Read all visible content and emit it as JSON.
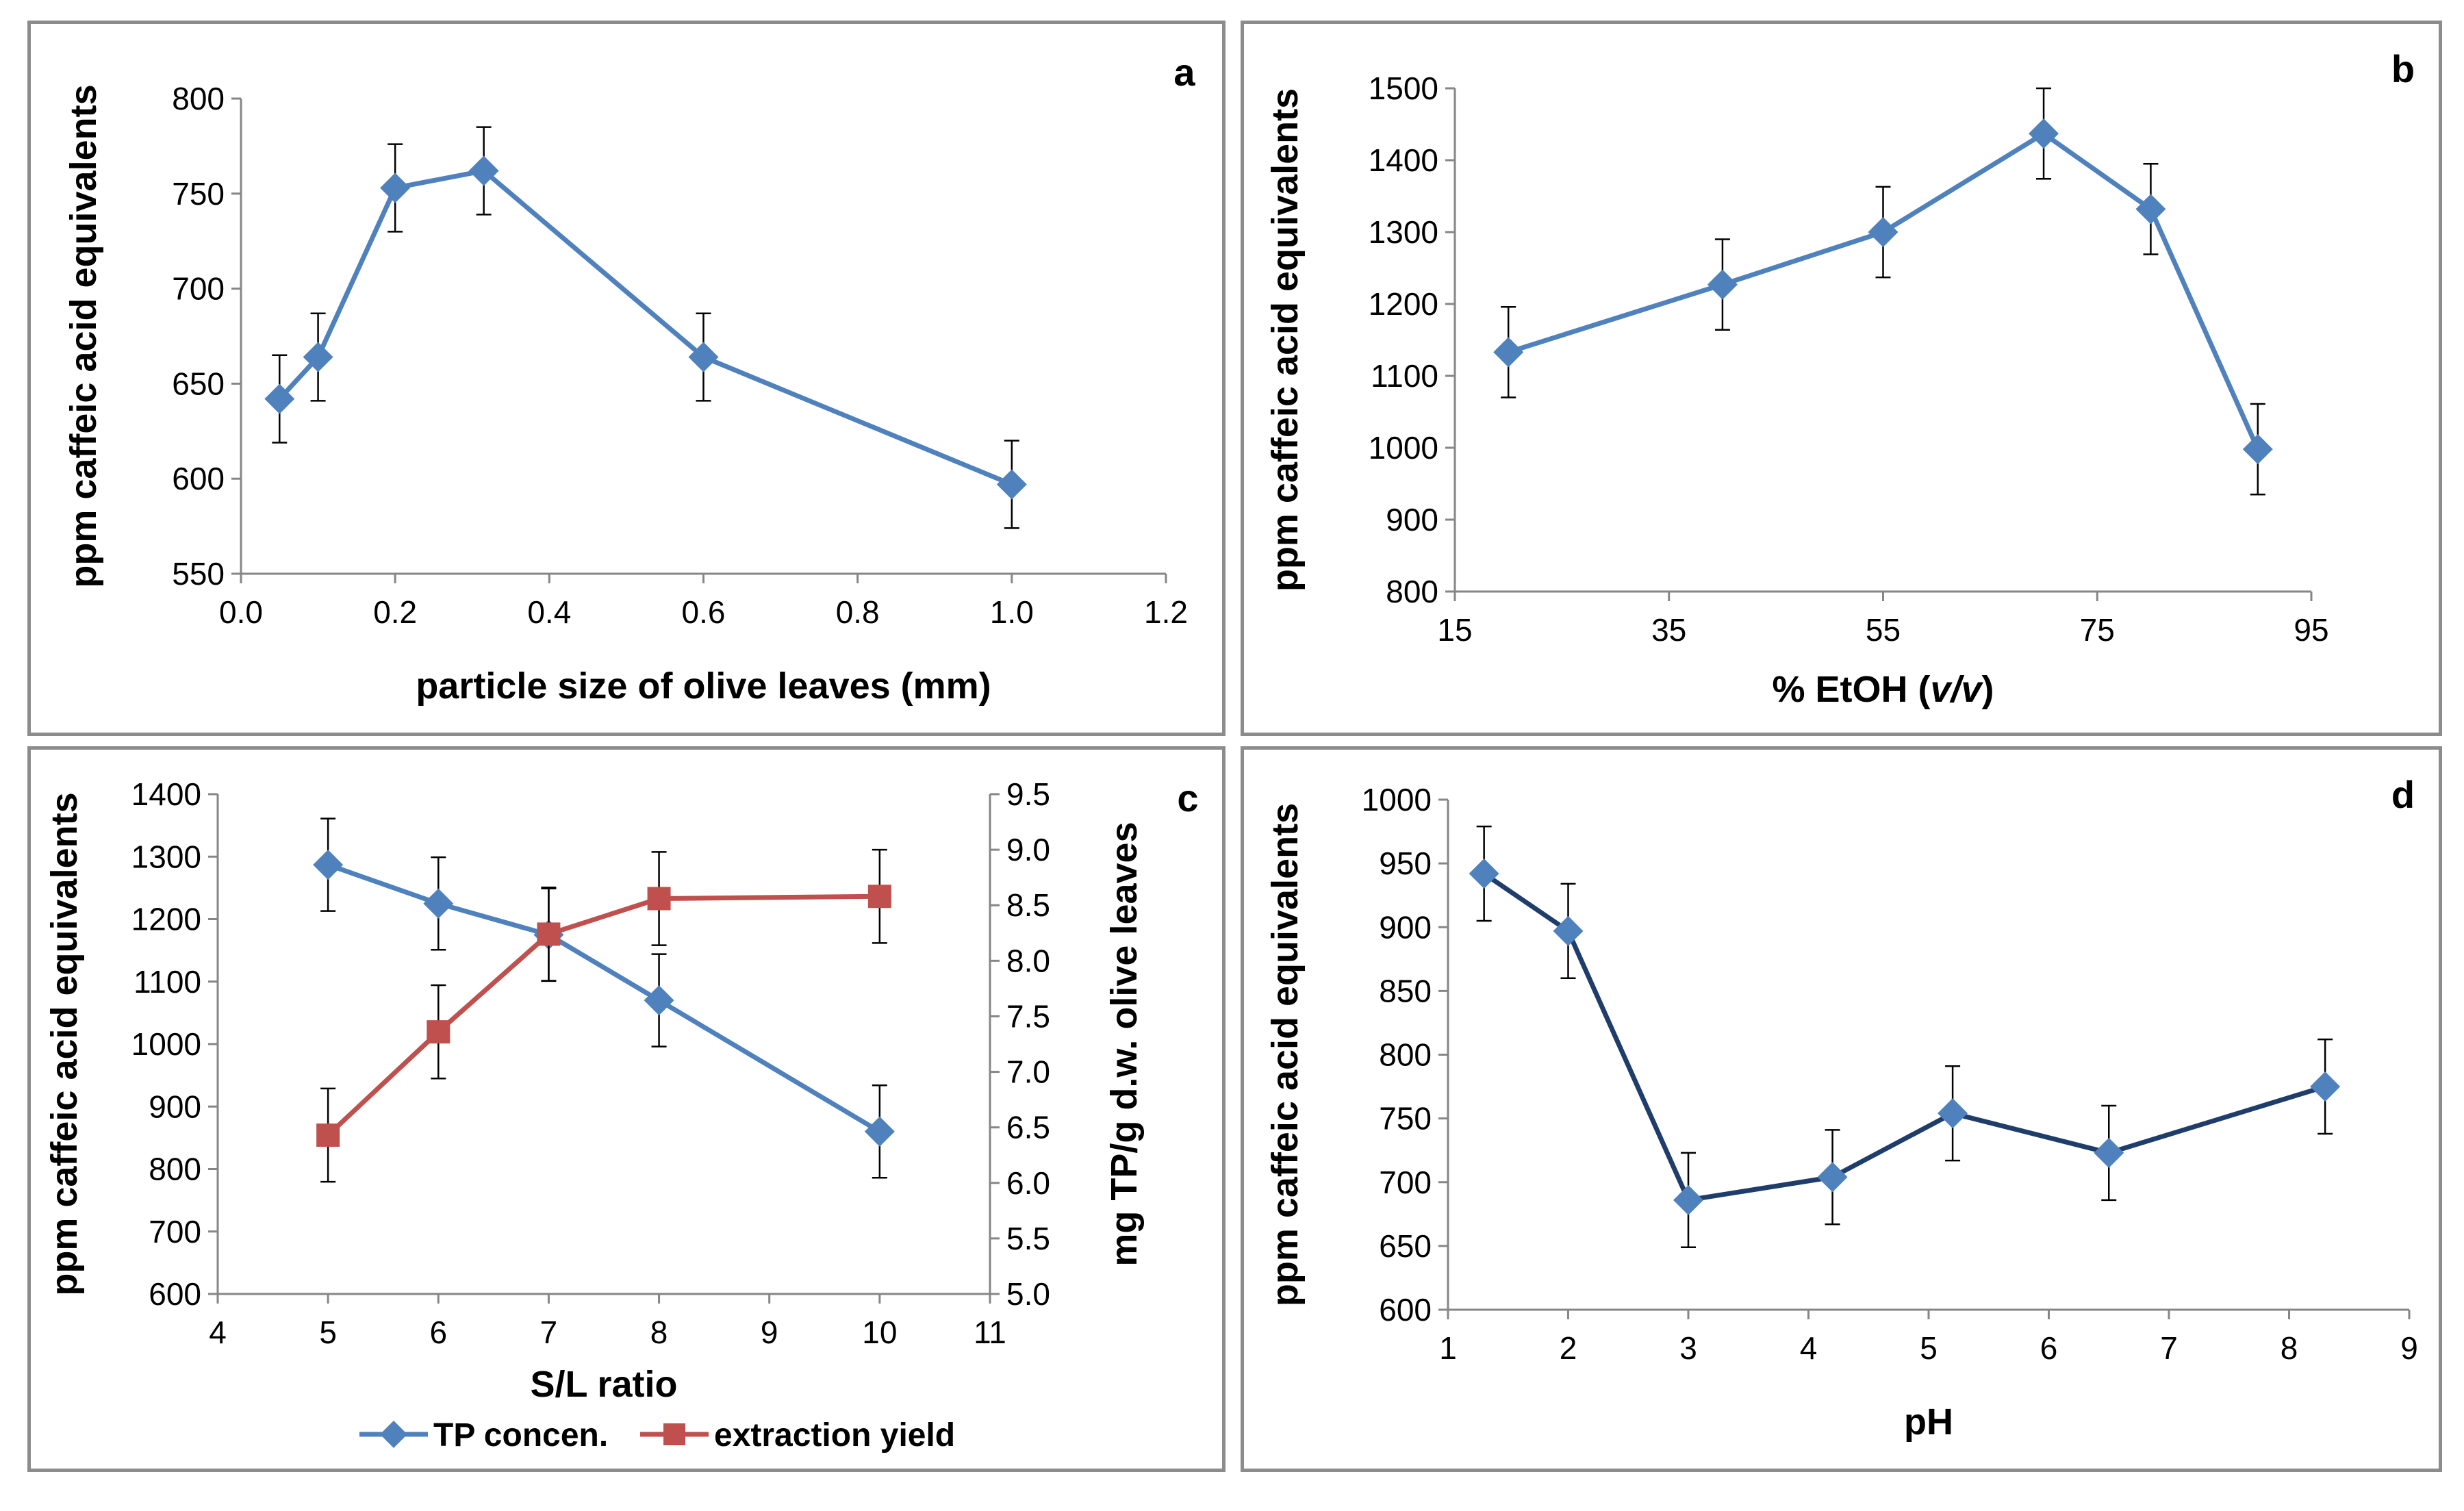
{
  "chart_data": [
    {
      "id": "a",
      "type": "line",
      "panel_label": "a",
      "xlabel": "particle size of olive leaves (mm)",
      "ylabel": "ppm caffeic acid equivalents",
      "xlim": [
        0.0,
        1.2
      ],
      "ylim": [
        550,
        800
      ],
      "xticks": [
        "0.0",
        "0.2",
        "0.4",
        "0.6",
        "0.8",
        "1.0",
        "1.2"
      ],
      "yticks": [
        "550",
        "600",
        "650",
        "700",
        "750",
        "800"
      ],
      "series": [
        {
          "name": "TP concen.",
          "color": "#4f81bd",
          "marker": "diamond",
          "x": [
            0.05,
            0.1,
            0.2,
            0.315,
            0.6,
            1.0
          ],
          "y": [
            642,
            664,
            753,
            762,
            664,
            597
          ],
          "err": [
            23,
            23,
            23,
            23,
            23,
            23
          ]
        }
      ]
    },
    {
      "id": "b",
      "type": "line",
      "panel_label": "b",
      "xlabel": "% EtOH (v/v)",
      "xlabel_main": "% EtOH (",
      "xlabel_var": "v/v",
      "xlabel_end": ")",
      "ylabel": "ppm caffeic acid equivalents",
      "xlim": [
        15,
        95
      ],
      "ylim": [
        800,
        1500
      ],
      "xticks": [
        "15",
        "35",
        "55",
        "75",
        "95"
      ],
      "yticks": [
        "800",
        "900",
        "1000",
        "1100",
        "1200",
        "1300",
        "1400",
        "1500"
      ],
      "series": [
        {
          "name": "TP concen.",
          "color": "#4f81bd",
          "marker": "diamond",
          "x": [
            20,
            40,
            55,
            70,
            80,
            90
          ],
          "y": [
            1133,
            1227,
            1300,
            1437,
            1332,
            998
          ],
          "err": [
            63,
            63,
            63,
            63,
            63,
            63
          ]
        }
      ]
    },
    {
      "id": "c",
      "type": "line",
      "panel_label": "c",
      "xlabel": "S/L ratio",
      "ylabel": "ppm caffeic acid equivalents",
      "y2label": "mg TP/g d.w. olive leaves",
      "xlim": [
        4,
        11
      ],
      "ylim": [
        600,
        1400
      ],
      "y2lim": [
        5.0,
        9.5
      ],
      "xticks": [
        "4",
        "5",
        "6",
        "7",
        "8",
        "9",
        "10",
        "11"
      ],
      "yticks": [
        "600",
        "700",
        "800",
        "900",
        "1000",
        "1100",
        "1200",
        "1300",
        "1400"
      ],
      "y2ticks": [
        "5.0",
        "5.5",
        "6.0",
        "6.5",
        "7.0",
        "7.5",
        "8.0",
        "8.5",
        "9.0",
        "9.5"
      ],
      "legend_position": "bottom",
      "series": [
        {
          "name": "TP concen.",
          "axis": "left",
          "color": "#4f81bd",
          "marker": "diamond",
          "x": [
            5,
            6,
            7,
            8,
            10
          ],
          "y": [
            1287,
            1225,
            1175,
            1070,
            860
          ],
          "err": [
            74,
            74,
            74,
            74,
            74
          ]
        },
        {
          "name": "extraction yield",
          "axis": "right",
          "color": "#c0504d",
          "marker": "square",
          "x": [
            5,
            6,
            7,
            8,
            10
          ],
          "y": [
            6.43,
            7.36,
            8.24,
            8.56,
            8.58
          ],
          "err": [
            0.42,
            0.42,
            0.42,
            0.42,
            0.42
          ]
        }
      ]
    },
    {
      "id": "d",
      "type": "line",
      "panel_label": "d",
      "xlabel": "pH",
      "ylabel": "ppm caffeic acid equivalents",
      "xlim": [
        1,
        9
      ],
      "ylim": [
        600,
        1000
      ],
      "xticks": [
        "1",
        "2",
        "3",
        "4",
        "5",
        "6",
        "7",
        "8",
        "9"
      ],
      "yticks": [
        "600",
        "650",
        "700",
        "750",
        "800",
        "850",
        "900",
        "950",
        "1000"
      ],
      "series": [
        {
          "name": "TP concen.",
          "color": "#4f81bd",
          "line_color": "#1f3d6b",
          "marker": "diamond",
          "x": [
            1.3,
            2.0,
            3.0,
            4.2,
            5.2,
            6.5,
            8.3
          ],
          "y": [
            942,
            897,
            686,
            704,
            754,
            723,
            775
          ],
          "err": [
            37,
            37,
            37,
            37,
            37,
            37,
            37
          ]
        }
      ]
    }
  ]
}
